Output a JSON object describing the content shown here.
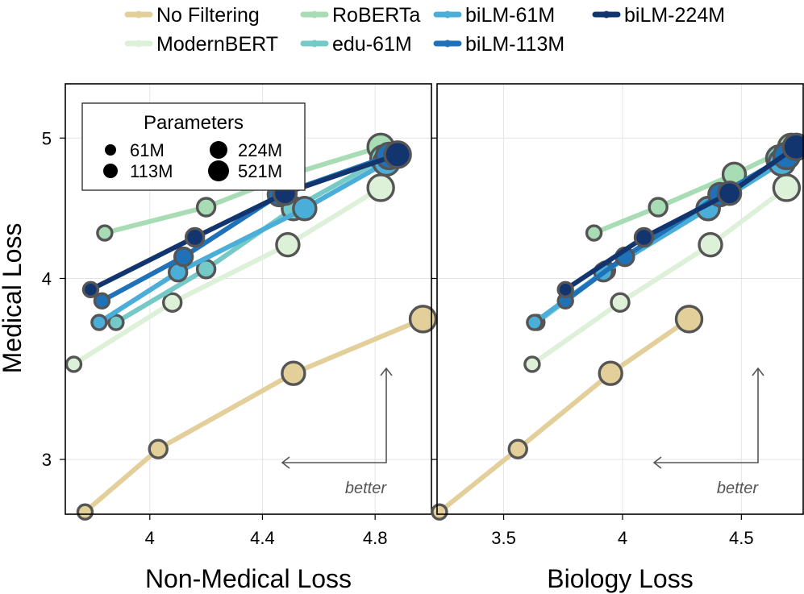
{
  "chart_data": {
    "type": "scatter",
    "legend": {
      "entries": [
        {
          "name": "No Filtering",
          "color": "#e3cf9a"
        },
        {
          "name": "RoBERTa",
          "color": "#a7dcb4"
        },
        {
          "name": "biLM-61M",
          "color": "#4aaed8"
        },
        {
          "name": "biLM-224M",
          "color": "#12356f"
        },
        {
          "name": "ModernBERT",
          "color": "#dcf1d8"
        },
        {
          "name": "edu-61M",
          "color": "#75c9c7"
        },
        {
          "name": "biLM-113M",
          "color": "#1f72b7"
        }
      ],
      "size_title": "Parameters",
      "sizes": [
        "61M",
        "113M",
        "224M",
        "521M"
      ]
    },
    "y_axis": {
      "label": "Medical Loss",
      "scale": "log",
      "range": [
        2.75,
        5.45
      ],
      "ticks": [
        3,
        4,
        5
      ],
      "tick_labels": [
        "3",
        "4",
        "5"
      ]
    },
    "panels": [
      {
        "xlabel": "Non-Medical Loss",
        "xlim": [
          3.7,
          5.0
        ],
        "ticks": [
          4.0,
          4.4,
          4.8
        ],
        "tick_labels": [
          "4",
          "4.4",
          "4.8"
        ],
        "note": "better",
        "series": [
          {
            "name": "No Filtering",
            "points": [
              [
                3.77,
                2.76
              ],
              [
                4.03,
                3.05
              ],
              [
                4.51,
                3.44
              ],
              [
                4.97,
                3.75
              ]
            ]
          },
          {
            "name": "ModernBERT",
            "points": [
              [
                3.73,
                3.49
              ],
              [
                4.08,
                3.85
              ],
              [
                4.49,
                4.22
              ],
              [
                4.82,
                4.62
              ]
            ]
          },
          {
            "name": "RoBERTa",
            "points": [
              [
                3.84,
                4.3
              ],
              [
                4.2,
                4.48
              ],
              [
                4.5,
                4.72
              ],
              [
                4.82,
                4.93
              ]
            ]
          },
          {
            "name": "edu-61M",
            "points": [
              [
                3.88,
                3.73
              ],
              [
                4.2,
                4.06
              ],
              [
                4.51,
                4.47
              ],
              [
                4.83,
                4.84
              ]
            ]
          },
          {
            "name": "biLM-61M",
            "points": [
              [
                3.82,
                3.73
              ],
              [
                4.1,
                4.04
              ],
              [
                4.55,
                4.47
              ],
              [
                4.84,
                4.81
              ]
            ]
          },
          {
            "name": "biLM-113M",
            "points": [
              [
                3.83,
                3.86
              ],
              [
                4.12,
                4.14
              ],
              [
                4.46,
                4.57
              ],
              [
                4.85,
                4.86
              ]
            ]
          },
          {
            "name": "biLM-224M",
            "points": [
              [
                3.79,
                3.93
              ],
              [
                4.16,
                4.27
              ],
              [
                4.48,
                4.58
              ],
              [
                4.88,
                4.87
              ]
            ]
          }
        ]
      },
      {
        "xlabel": "Biology Loss",
        "xlim": [
          3.22,
          4.76
        ],
        "ticks": [
          3.5,
          4.0,
          4.5
        ],
        "tick_labels": [
          "3.5",
          "4",
          "4.5"
        ],
        "note": "better",
        "series": [
          {
            "name": "No Filtering",
            "points": [
              [
                3.23,
                2.76
              ],
              [
                3.56,
                3.05
              ],
              [
                3.95,
                3.44
              ],
              [
                4.28,
                3.75
              ]
            ]
          },
          {
            "name": "ModernBERT",
            "points": [
              [
                3.62,
                3.49
              ],
              [
                3.99,
                3.85
              ],
              [
                4.37,
                4.22
              ],
              [
                4.69,
                4.62
              ]
            ]
          },
          {
            "name": "RoBERTa",
            "points": [
              [
                3.88,
                4.3
              ],
              [
                4.15,
                4.48
              ],
              [
                4.47,
                4.72
              ],
              [
                4.71,
                4.93
              ]
            ]
          },
          {
            "name": "edu-61M",
            "points": [
              [
                3.64,
                3.73
              ],
              [
                3.93,
                4.05
              ],
              [
                4.36,
                4.47
              ],
              [
                4.66,
                4.84
              ]
            ]
          },
          {
            "name": "biLM-61M",
            "points": [
              [
                3.63,
                3.73
              ],
              [
                3.92,
                4.04
              ],
              [
                4.36,
                4.47
              ],
              [
                4.67,
                4.81
              ]
            ]
          },
          {
            "name": "biLM-113M",
            "points": [
              [
                3.76,
                3.86
              ],
              [
                4.01,
                4.14
              ],
              [
                4.41,
                4.57
              ],
              [
                4.69,
                4.86
              ]
            ]
          },
          {
            "name": "biLM-224M",
            "points": [
              [
                3.76,
                3.93
              ],
              [
                4.09,
                4.27
              ],
              [
                4.45,
                4.58
              ],
              [
                4.73,
                4.93
              ]
            ]
          }
        ]
      }
    ]
  }
}
